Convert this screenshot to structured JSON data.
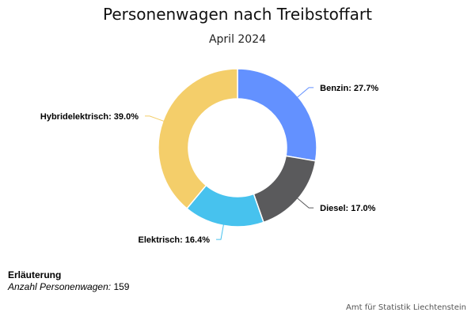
{
  "chart_data": {
    "type": "pie",
    "variant": "donut",
    "title": "Personenwagen nach Treibstoffart",
    "subtitle": "April 2024",
    "unit": "%",
    "slices": [
      {
        "name": "Benzin",
        "value": 27.7,
        "color": "#6391FF",
        "label": "Benzin: 27.7%"
      },
      {
        "name": "Diesel",
        "value": 17.0,
        "color": "#5A5A5C",
        "label": "Diesel: 17.0%"
      },
      {
        "name": "Elektrisch",
        "value": 16.4,
        "color": "#47C2EE",
        "label": "Elektrisch: 16.4%"
      },
      {
        "name": "Hybridelektrisch",
        "value": 39.0,
        "color": "#F4CE6A",
        "label": "Hybridelektrisch: 39.0%"
      }
    ]
  },
  "note": {
    "heading": "Erläuterung",
    "label": "Anzahl Personenwagen:",
    "value": "159"
  },
  "credits": "Amt für Statistik Liechtenstein"
}
